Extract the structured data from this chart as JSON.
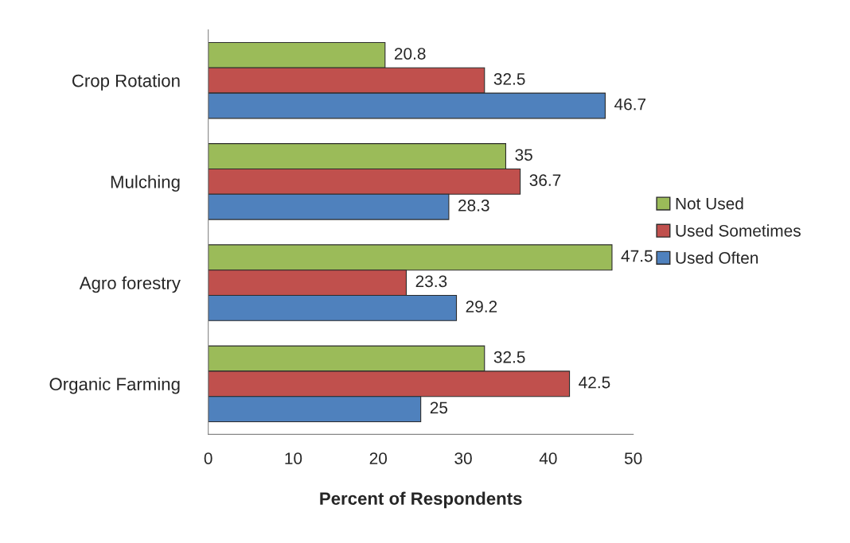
{
  "chart_data": {
    "type": "bar",
    "orientation": "horizontal",
    "xlabel": "Percent of Respondents",
    "categories": [
      "Crop Rotation",
      "Mulching",
      "Agro forestry",
      "Organic Farming"
    ],
    "series": [
      {
        "name": "Not Used",
        "color": "#9bbb59",
        "values": [
          20.8,
          35,
          47.5,
          32.5
        ]
      },
      {
        "name": "Used Sometimes",
        "color": "#c0504d",
        "values": [
          32.5,
          36.7,
          23.3,
          42.5
        ]
      },
      {
        "name": "Used Often",
        "color": "#4f81bd",
        "values": [
          46.7,
          28.3,
          29.2,
          25
        ]
      }
    ],
    "xlim": [
      0,
      50
    ],
    "xticks": [
      0,
      10,
      20,
      30,
      40,
      50
    ],
    "grid": false,
    "legend": "right",
    "data_labels": true
  }
}
